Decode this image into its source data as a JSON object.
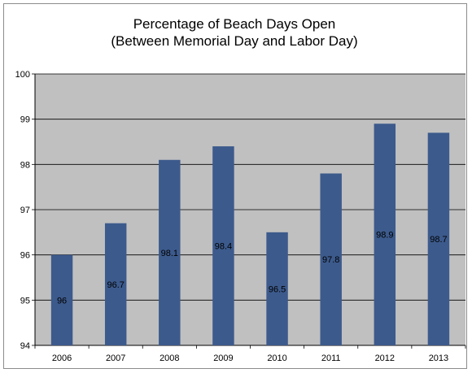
{
  "chart_data": {
    "type": "bar",
    "title_lines": [
      "Percentage of Beach Days Open",
      "(Between Memorial Day and Labor Day)"
    ],
    "xlabel": "",
    "ylabel": "",
    "categories": [
      "2006",
      "2007",
      "2008",
      "2009",
      "2010",
      "2011",
      "2012",
      "2013"
    ],
    "values": [
      96,
      96.7,
      98.1,
      98.4,
      96.5,
      97.8,
      98.9,
      98.7
    ],
    "data_labels": [
      "96",
      "96.7",
      "98.1",
      "98.4",
      "96.5",
      "97.8",
      "98.9",
      "98.7"
    ],
    "ylim": [
      94,
      100
    ],
    "y_ticks": [
      "94",
      "95",
      "96",
      "97",
      "98",
      "99",
      "100"
    ],
    "grid": true,
    "legend": "none",
    "colors": {
      "bar": "#3c5a8c",
      "plot_background": "#c0c0c0",
      "gridline": "#000000"
    }
  }
}
